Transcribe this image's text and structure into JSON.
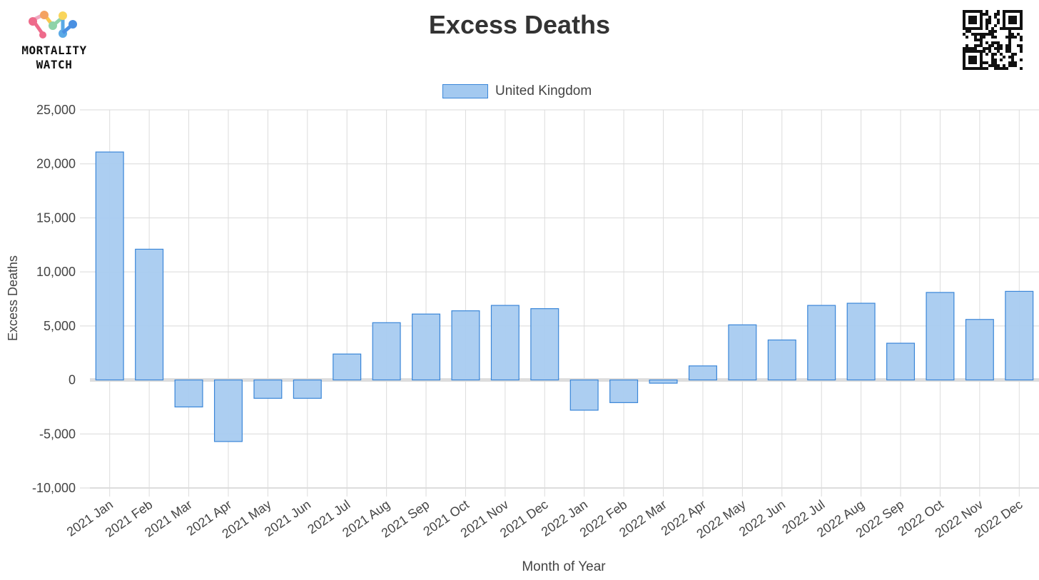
{
  "logo": {
    "line1": "MORTALITY",
    "line2": "WATCH"
  },
  "chart_data": {
    "type": "bar",
    "title": "Excess Deaths",
    "xlabel": "Month of Year",
    "ylabel": "Excess Deaths",
    "ylim": [
      -10000,
      25000
    ],
    "yticks": [
      25000,
      20000,
      15000,
      10000,
      5000,
      0,
      -5000,
      -10000
    ],
    "ytick_labels": [
      "25,000",
      "20,000",
      "15,000",
      "10,000",
      "5,000",
      "0",
      "-5,000",
      "-10,000"
    ],
    "grid": true,
    "legend_position": "top-center",
    "categories": [
      "2021 Jan",
      "2021 Feb",
      "2021 Mar",
      "2021 Apr",
      "2021 May",
      "2021 Jun",
      "2021 Jul",
      "2021 Aug",
      "2021 Sep",
      "2021 Oct",
      "2021 Nov",
      "2021 Dec",
      "2022 Jan",
      "2022 Feb",
      "2022 Mar",
      "2022 Apr",
      "2022 May",
      "2022 Jun",
      "2022 Jul",
      "2022 Aug",
      "2022 Sep",
      "2022 Oct",
      "2022 Nov",
      "2022 Dec"
    ],
    "series": [
      {
        "name": "United Kingdom",
        "values": [
          21100,
          12100,
          -2500,
          -5700,
          -1700,
          -1700,
          2400,
          5300,
          6100,
          6400,
          6900,
          6600,
          -2800,
          -2100,
          -300,
          1300,
          5100,
          3700,
          6900,
          7100,
          3400,
          8100,
          5600,
          8200
        ],
        "fill": "#a8cbf0",
        "stroke": "#3a86d8"
      }
    ]
  }
}
